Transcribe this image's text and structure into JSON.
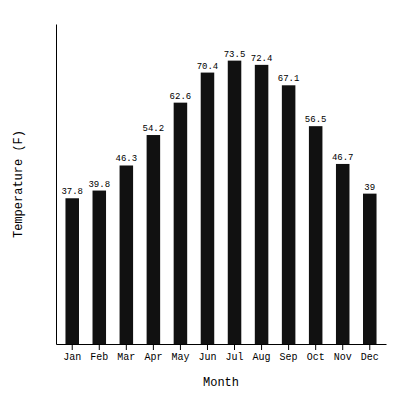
{
  "chart_data": {
    "type": "bar",
    "categories": [
      "Jan",
      "Feb",
      "Mar",
      "Apr",
      "May",
      "Jun",
      "Jul",
      "Aug",
      "Sep",
      "Oct",
      "Nov",
      "Dec"
    ],
    "values": [
      37.8,
      39.8,
      46.3,
      54.2,
      62.6,
      70.4,
      73.5,
      72.4,
      67.1,
      56.5,
      46.7,
      39.0
    ],
    "color": "#111111",
    "x_label": "Month",
    "y_label": "Temperature (F)",
    "ylim": [
      0,
      83
    ],
    "yticks": [],
    "tick_labels": "x",
    "data_labels": true,
    "grid": false
  }
}
